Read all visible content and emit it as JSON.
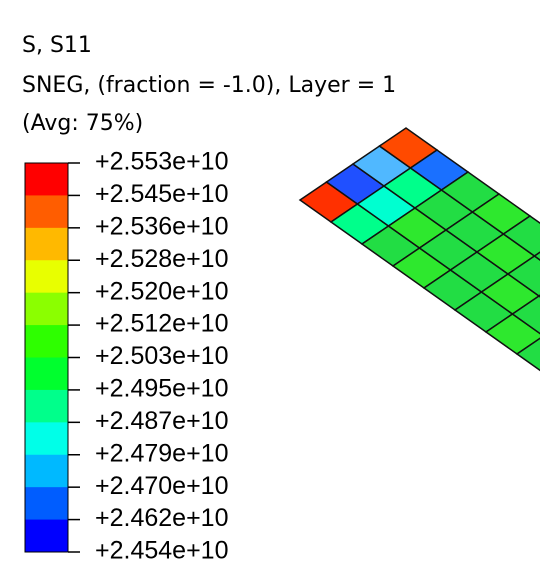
{
  "legend": {
    "title": [
      "S, S11",
      "SNEG, (fraction = -1.0), Layer = 1",
      "(Avg: 75%)"
    ],
    "labels": [
      "+2.553e+10",
      "+2.545e+10",
      "+2.536e+10",
      "+2.528e+10",
      "+2.520e+10",
      "+2.512e+10",
      "+2.503e+10",
      "+2.495e+10",
      "+2.487e+10",
      "+2.479e+10",
      "+2.470e+10",
      "+2.462e+10",
      "+2.454e+10"
    ],
    "colors": [
      "#ff0000",
      "#ff5d00",
      "#ffb900",
      "#e8ff00",
      "#8bff00",
      "#2eff00",
      "#00ff2e",
      "#00ff8b",
      "#00ffe8",
      "#00b9ff",
      "#005dff",
      "#0000ff"
    ]
  }
}
